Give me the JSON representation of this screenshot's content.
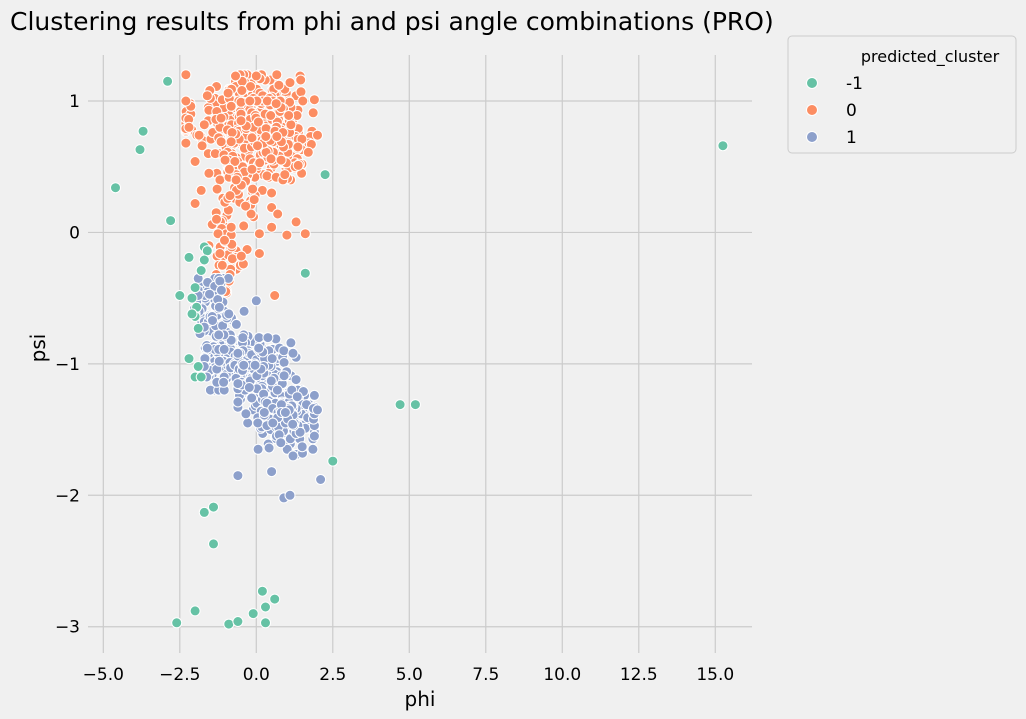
{
  "chart_data": {
    "type": "scatter",
    "title": "Clustering results from phi and psi angle combinations (PRO)",
    "xlabel": "phi",
    "ylabel": "psi",
    "xlim": [
      -5.5,
      16.2
    ],
    "ylim": [
      -3.2,
      1.35
    ],
    "xticks": [
      -5.0,
      -2.5,
      0.0,
      2.5,
      5.0,
      7.5,
      10.0,
      12.5,
      15.0
    ],
    "xtick_labels": [
      "−5.0",
      "−2.5",
      "0.0",
      "2.5",
      "5.0",
      "7.5",
      "10.0",
      "12.5",
      "15.0"
    ],
    "yticks": [
      -3,
      -2,
      -1,
      0,
      1
    ],
    "ytick_labels": [
      "−3",
      "−2",
      "−1",
      "0",
      "1"
    ],
    "grid": true,
    "legend": {
      "title": "predicted_cluster",
      "placement": "outside-top-right"
    },
    "series": [
      {
        "name": "-1",
        "color": "#66c2a5",
        "points": [
          [
            -2.9,
            1.15
          ],
          [
            -3.7,
            0.77
          ],
          [
            -3.8,
            0.63
          ],
          [
            -4.6,
            0.34
          ],
          [
            -2.8,
            0.09
          ],
          [
            2.25,
            0.44
          ],
          [
            15.25,
            0.66
          ],
          [
            -1.7,
            -0.11
          ],
          [
            -1.6,
            -0.14
          ],
          [
            -2.2,
            -0.19
          ],
          [
            -1.7,
            -0.21
          ],
          [
            -1.8,
            -0.29
          ],
          [
            1.6,
            -0.31
          ],
          [
            -2.5,
            -0.48
          ],
          [
            -2.0,
            -0.42
          ],
          [
            -2.1,
            -0.5
          ],
          [
            -1.95,
            -0.57
          ],
          [
            -2.0,
            -0.64
          ],
          [
            -2.1,
            -0.62
          ],
          [
            -1.9,
            -0.73
          ],
          [
            -2.2,
            -0.96
          ],
          [
            -1.9,
            -1.02
          ],
          [
            -2.0,
            -1.1
          ],
          [
            -1.8,
            -1.1
          ],
          [
            4.7,
            -1.31
          ],
          [
            5.2,
            -1.31
          ],
          [
            2.5,
            -1.74
          ],
          [
            -1.4,
            -2.09
          ],
          [
            -1.7,
            -2.13
          ],
          [
            -1.4,
            -2.37
          ],
          [
            -2.6,
            -2.97
          ],
          [
            -2.0,
            -2.88
          ],
          [
            -0.9,
            -2.98
          ],
          [
            -0.6,
            -2.96
          ],
          [
            -0.1,
            -2.9
          ],
          [
            0.2,
            -2.73
          ],
          [
            0.6,
            -2.79
          ],
          [
            0.3,
            -2.85
          ],
          [
            0.3,
            -2.97
          ]
        ]
      },
      {
        "name": "0",
        "color": "#fc8d62",
        "points": []
      },
      {
        "name": "1",
        "color": "#8da0cb",
        "points": []
      }
    ]
  }
}
